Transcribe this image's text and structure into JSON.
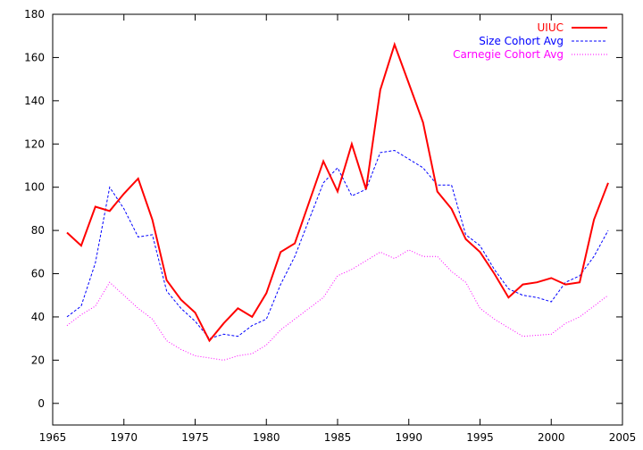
{
  "chart_data": {
    "type": "line",
    "title": "",
    "xlabel": "",
    "ylabel": "",
    "xlim": [
      1965,
      2005
    ],
    "ylim": [
      -10,
      180
    ],
    "xticks": [
      1965,
      1970,
      1975,
      1980,
      1985,
      1990,
      1995,
      2000,
      2005
    ],
    "yticks": [
      0,
      20,
      40,
      60,
      80,
      100,
      120,
      140,
      160,
      180
    ],
    "xtick_labels": [
      "1965",
      "1970",
      "1975",
      "1980",
      "1985",
      "1990",
      "1995",
      "2000",
      "2005"
    ],
    "ytick_labels": [
      "0",
      "20",
      "40",
      "60",
      "80",
      "100",
      "120",
      "140",
      "160",
      "180"
    ],
    "grid": false,
    "legend_position": "top-right",
    "x": [
      1966,
      1967,
      1968,
      1969,
      1970,
      1971,
      1972,
      1973,
      1974,
      1975,
      1976,
      1977,
      1978,
      1979,
      1980,
      1981,
      1982,
      1983,
      1984,
      1985,
      1986,
      1987,
      1988,
      1989,
      1990,
      1991,
      1992,
      1993,
      1994,
      1995,
      1996,
      1997,
      1998,
      1999,
      2000,
      2001,
      2002,
      2003,
      2004
    ],
    "series": [
      {
        "name": "UIUC",
        "color": "#ff0000",
        "style": "solid",
        "values": [
          79,
          73,
          91,
          89,
          97,
          104,
          85,
          57,
          48,
          42,
          29,
          37,
          44,
          40,
          51,
          70,
          74,
          93,
          112,
          98,
          120,
          99,
          145,
          166,
          148,
          130,
          98,
          90,
          76,
          70,
          60,
          49,
          55,
          56,
          58,
          55,
          56,
          85,
          102
        ]
      },
      {
        "name": "Size Cohort Avg",
        "color": "#0000ff",
        "style": "dashed",
        "values": [
          40,
          45,
          65,
          100,
          90,
          77,
          78,
          52,
          44,
          38,
          30,
          32,
          31,
          36,
          39,
          55,
          68,
          85,
          102,
          109,
          96,
          99,
          116,
          117,
          113,
          109,
          101,
          101,
          78,
          73,
          62,
          53,
          50,
          49,
          47,
          56,
          59,
          68,
          80
        ]
      },
      {
        "name": "Carnegie Cohort Avg",
        "color": "#ff00ff",
        "style": "dotted",
        "values": [
          36,
          41,
          45,
          56,
          50,
          44,
          39,
          29,
          25,
          22,
          21,
          20,
          22,
          23,
          27,
          34,
          39,
          44,
          49,
          59,
          62,
          66,
          70,
          67,
          71,
          68,
          68,
          61,
          56,
          44,
          39,
          35,
          31,
          31.5,
          32,
          37,
          40,
          45,
          50
        ]
      }
    ]
  }
}
